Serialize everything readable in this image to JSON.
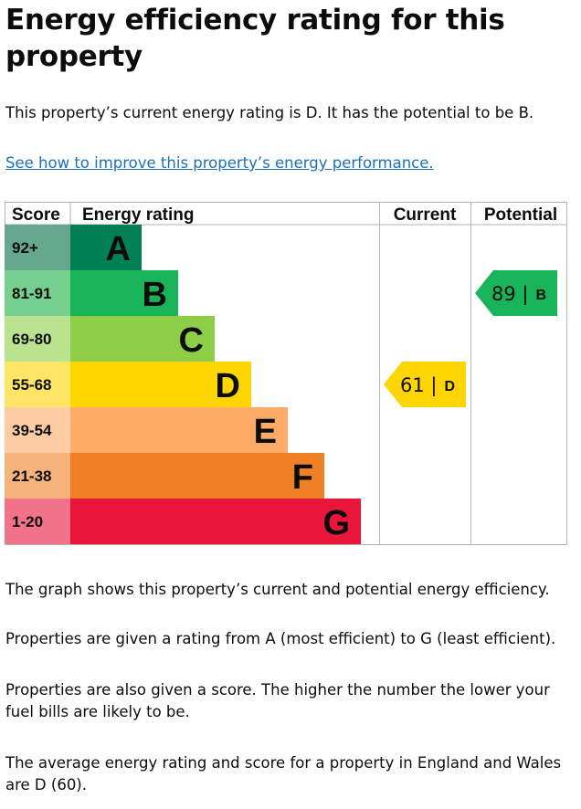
{
  "title": "Energy efficiency rating for this property",
  "intro": "This property’s current energy rating is D. It has the potential to be B.",
  "improve_link": "See how to improve this property’s energy performance.",
  "chart_data": {
    "type": "bar",
    "headers": {
      "score": "Score",
      "rating": "Energy rating",
      "current": "Current",
      "potential": "Potential"
    },
    "bands": [
      {
        "score": "92+",
        "letter": "A",
        "color": "#008054",
        "light": "#66a88f"
      },
      {
        "score": "81-91",
        "letter": "B",
        "color": "#19b459",
        "light": "#75cf8e"
      },
      {
        "score": "69-80",
        "letter": "C",
        "color": "#8dce46",
        "light": "#bbe28f"
      },
      {
        "score": "55-68",
        "letter": "D",
        "color": "#ffd500",
        "light": "#ffe566"
      },
      {
        "score": "39-54",
        "letter": "E",
        "color": "#fcaa65",
        "light": "#fdcca3"
      },
      {
        "score": "21-38",
        "letter": "F",
        "color": "#ef8023",
        "light": "#f5b37b"
      },
      {
        "score": "1-20",
        "letter": "G",
        "color": "#e9153b",
        "light": "#f27389"
      }
    ],
    "current": {
      "score": 61,
      "letter": "D",
      "label": "61 |",
      "color": "#ffd500"
    },
    "potential": {
      "score": 89,
      "letter": "B",
      "label": "89 |",
      "color": "#19b459"
    }
  },
  "paragraphs": [
    "The graph shows this property’s current and potential energy efficiency.",
    "Properties are given a rating from A (most efficient) to G (least efficient).",
    "Properties are also given a score. The higher the number the lower your fuel bills are likely to be.",
    "The average energy rating and score for a property in England and Wales are D (60)."
  ]
}
